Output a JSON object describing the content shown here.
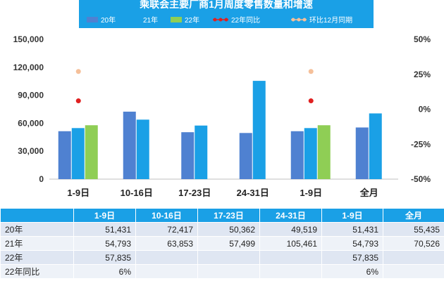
{
  "chart_data": {
    "type": "bar",
    "title": "乘联会主要厂商1月周度零售数量和增速",
    "categories": [
      "1-9日",
      "10-16日",
      "17-23日",
      "24-31日",
      "1-9日",
      "全月"
    ],
    "series": [
      {
        "name": "20年",
        "color": "#4f81d1",
        "values": [
          51431,
          72417,
          50362,
          49519,
          51431,
          55435
        ]
      },
      {
        "name": "21年",
        "color": "#1aa0e6",
        "values": [
          54793,
          63853,
          57499,
          105461,
          54793,
          70526
        ]
      },
      {
        "name": "22年",
        "color": "#8fce55",
        "values": [
          57835,
          null,
          null,
          null,
          57835,
          null
        ]
      }
    ],
    "line_series": [
      {
        "name": "22年同比",
        "color": "#e02020",
        "values": [
          6,
          null,
          null,
          null,
          6,
          null
        ]
      },
      {
        "name": "环比12月同期",
        "color": "#f5c09a",
        "values": [
          27,
          null,
          null,
          null,
          27,
          null
        ]
      }
    ],
    "y_left": {
      "min": 0,
      "max": 150000,
      "ticks": [
        "0",
        "30,000",
        "60,000",
        "90,000",
        "120,000",
        "150,000"
      ]
    },
    "y_right": {
      "min": -50,
      "max": 50,
      "ticks": [
        "-50%",
        "-25%",
        "0%",
        "25%",
        "50%"
      ]
    },
    "legend_position": "top",
    "grid": false
  },
  "table": {
    "headers": [
      "",
      "1-9日",
      "10-16日",
      "17-23日",
      "24-31日",
      "1-9日",
      "全月"
    ],
    "rows": [
      {
        "label": "20年",
        "cells": [
          "51,431",
          "72,417",
          "50,362",
          "49,519",
          "51,431",
          "55,435"
        ]
      },
      {
        "label": "21年",
        "cells": [
          "54,793",
          "63,853",
          "57,499",
          "105,461",
          "54,793",
          "70,526"
        ]
      },
      {
        "label": "22年",
        "cells": [
          "57,835",
          "",
          "",
          "",
          "57,835",
          ""
        ]
      },
      {
        "label": "22年同比",
        "cells": [
          "6%",
          "",
          "",
          "",
          "6%",
          ""
        ]
      }
    ]
  }
}
